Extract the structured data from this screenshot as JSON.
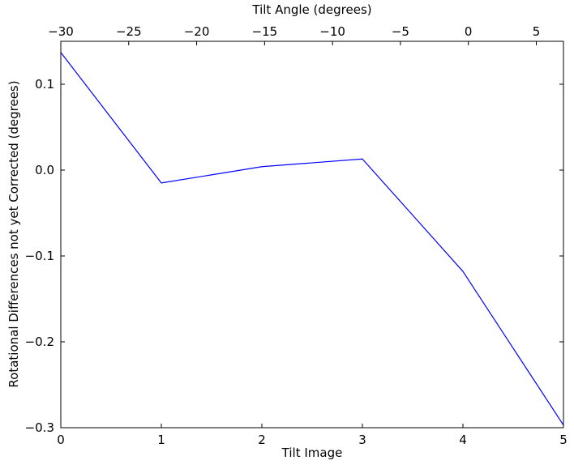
{
  "chart_data": {
    "type": "line",
    "title": "",
    "xlabel": "Tilt Image",
    "ylabel": "Rotational Differences not yet Corrected (degrees)",
    "x": [
      0,
      1,
      2,
      3,
      4,
      5
    ],
    "series": [
      {
        "name": "rotational-differences",
        "color": "#0000ff",
        "values": [
          0.137,
          -0.015,
          0.004,
          0.013,
          -0.118,
          -0.297
        ]
      }
    ],
    "xlim": [
      0,
      5
    ],
    "ylim": [
      -0.3,
      0.15
    ],
    "x_ticks": [
      0,
      1,
      2,
      3,
      4,
      5
    ],
    "x_tick_labels": [
      "0",
      "1",
      "2",
      "3",
      "4",
      "5"
    ],
    "y_ticks": [
      0.1,
      0.0,
      -0.1,
      -0.2,
      -0.3
    ],
    "y_tick_labels": [
      "0.1",
      "0.0",
      "−0.1",
      "−0.2",
      "−0.3"
    ],
    "top_axis": {
      "label": "Tilt Angle (degrees)",
      "lim": [
        -30,
        7
      ],
      "ticks": [
        -30,
        -25,
        -20,
        -15,
        -10,
        -5,
        0,
        5
      ],
      "tick_labels": [
        "−30",
        "−25",
        "−20",
        "−15",
        "−10",
        "−5",
        "0",
        "5"
      ]
    },
    "grid": false,
    "legend": "none",
    "background": "#ffffff",
    "frame_color": "#000000"
  }
}
